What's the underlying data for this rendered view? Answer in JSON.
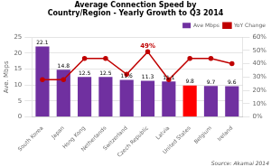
{
  "chart_data": {
    "type": "bar",
    "title": "Average Connection Speed by\nCountry/Region - Yearly Growth to Q3 2014",
    "categories": [
      "South Korea",
      "Japan",
      "Hong Kong",
      "Netherlands",
      "Switzerland",
      "Czech Republic",
      "Latvia",
      "United States",
      "Belgium",
      "Ireland"
    ],
    "series": [
      {
        "name": "Ave Mbps",
        "type": "bar",
        "values": [
          22.1,
          14.8,
          12.5,
          12.5,
          11.6,
          11.3,
          11.1,
          9.8,
          9.7,
          9.6
        ],
        "colors": [
          "#7030A0",
          "#7030A0",
          "#7030A0",
          "#7030A0",
          "#7030A0",
          "#7030A0",
          "#7030A0",
          "#FF0000",
          "#7030A0",
          "#7030A0"
        ],
        "data_labels": true
      },
      {
        "name": "YoY Change",
        "type": "line",
        "axis": "y2",
        "color": "#C00000",
        "marker": "circle",
        "values": [
          0.28,
          0.28,
          0.44,
          0.44,
          0.32,
          0.49,
          0.28,
          0.44,
          0.44,
          0.4
        ]
      }
    ],
    "ylabel": "Ave. Mbps",
    "ylim": [
      0,
      25
    ],
    "yticks": [
      0,
      5,
      10,
      15,
      20,
      25
    ],
    "y2lim": [
      0,
      0.6
    ],
    "y2ticks": [
      {
        "value": 0.0,
        "label": "0%"
      },
      {
        "value": 0.1,
        "label": "10%"
      },
      {
        "value": 0.2,
        "label": "20%"
      },
      {
        "value": 0.3,
        "label": "30%"
      },
      {
        "value": 0.4,
        "label": "40%"
      },
      {
        "value": 0.5,
        "label": "50%"
      },
      {
        "value": 0.6,
        "label": "60%"
      }
    ],
    "annotations": [
      {
        "text": "49%",
        "category": "Czech Republic",
        "value": 0.49,
        "axis": "y2"
      }
    ],
    "source": "Source: Akamai 2014",
    "grid": true,
    "legend": "upper right"
  }
}
